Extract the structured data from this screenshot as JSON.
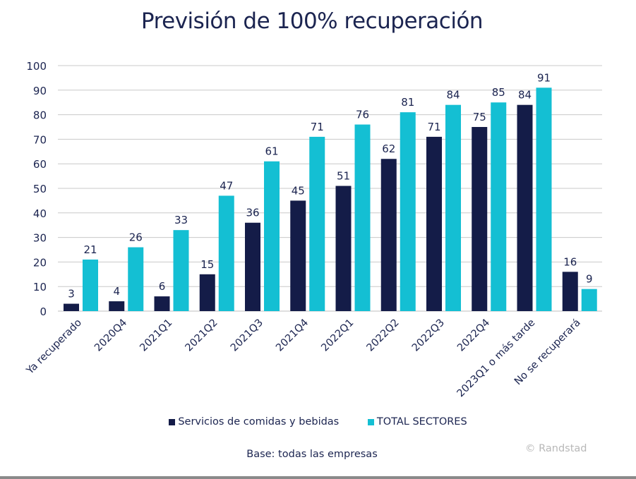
{
  "chart_data": {
    "type": "bar",
    "title": "Previsión de 100% recuperación",
    "categories": [
      "Ya recuperado",
      "2020Q4",
      "2021Q1",
      "2021Q2",
      "2021Q3",
      "2021Q4",
      "2022Q1",
      "2022Q2",
      "2022Q3",
      "2022Q4",
      "2023Q1 o más tarde",
      "No se recuperará"
    ],
    "series": [
      {
        "name": "Servicios de comidas y bebidas",
        "color": "#141c48",
        "values": [
          3,
          4,
          6,
          15,
          36,
          45,
          51,
          62,
          71,
          75,
          84,
          16
        ]
      },
      {
        "name": "TOTAL SECTORES",
        "color": "#14bfd3",
        "values": [
          21,
          26,
          33,
          47,
          61,
          71,
          76,
          81,
          84,
          85,
          91,
          9
        ]
      }
    ],
    "ylim": [
      0,
      100
    ],
    "yticks": [
      0,
      10,
      20,
      30,
      40,
      50,
      60,
      70,
      80,
      90,
      100
    ],
    "grid": true,
    "legend": "bottom",
    "xlabel": "",
    "ylabel": ""
  },
  "footer": {
    "base": "Base: todas las empresas",
    "credit": "© Randstad"
  }
}
